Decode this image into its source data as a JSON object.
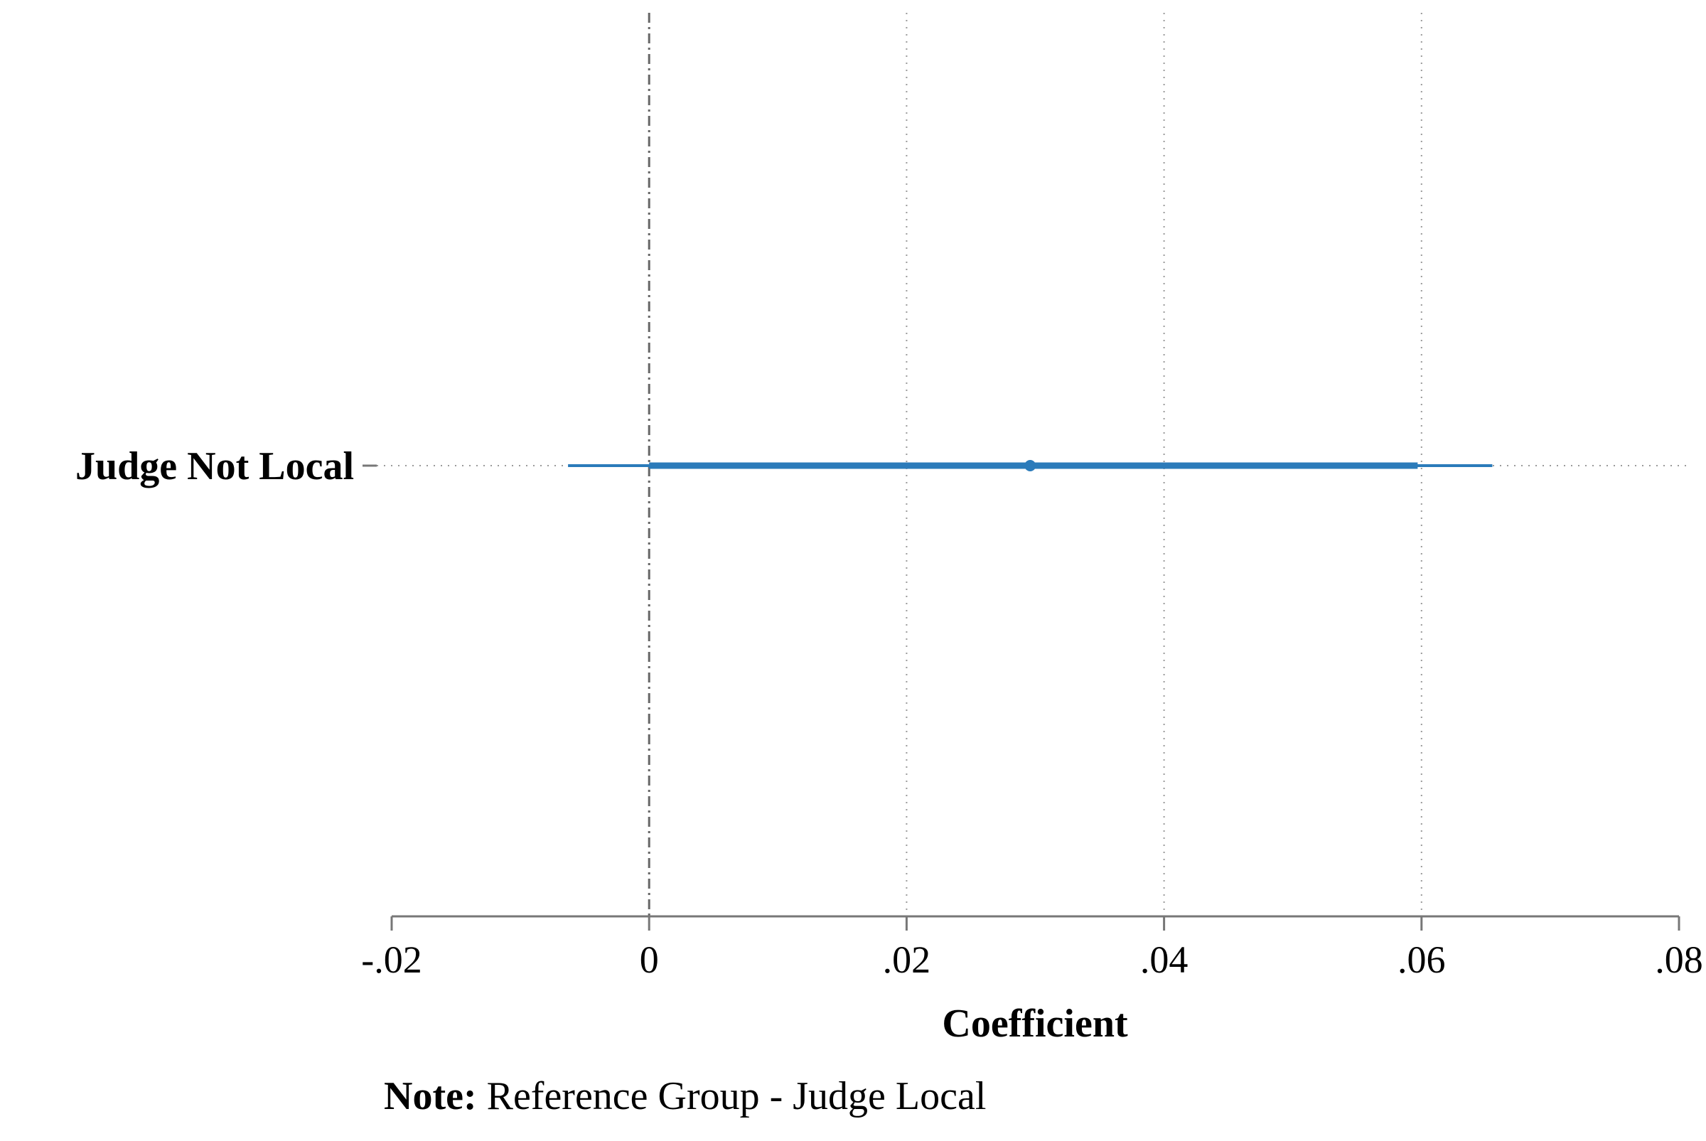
{
  "chart_data": {
    "type": "coefficient-plot",
    "title": "",
    "xlabel": "Coefficient",
    "ylabel": "",
    "xlim": [
      -0.02,
      0.08
    ],
    "x_ticks": [
      {
        "value": -0.02,
        "label": "-.02"
      },
      {
        "value": 0,
        "label": "0"
      },
      {
        "value": 0.02,
        "label": ".02"
      },
      {
        "value": 0.04,
        "label": ".04"
      },
      {
        "value": 0.06,
        "label": ".06"
      },
      {
        "value": 0.08,
        "label": ".08"
      }
    ],
    "grid": "vertical-dotted",
    "reference_line": {
      "x": 0,
      "style": "dashed"
    },
    "series": [
      {
        "category": "Judge Not Local",
        "estimate": 0.0296,
        "ci_outer": [
          -0.0063,
          0.0655
        ],
        "ci_inner": [
          0.0,
          0.0597
        ]
      }
    ],
    "colors": {
      "marker": "#2b7bba",
      "grid": "#9a9a9a",
      "axis": "#777777",
      "reference": "#666666"
    }
  },
  "note": {
    "prefix": "Note:",
    "text": " Reference Group - Judge Local"
  }
}
